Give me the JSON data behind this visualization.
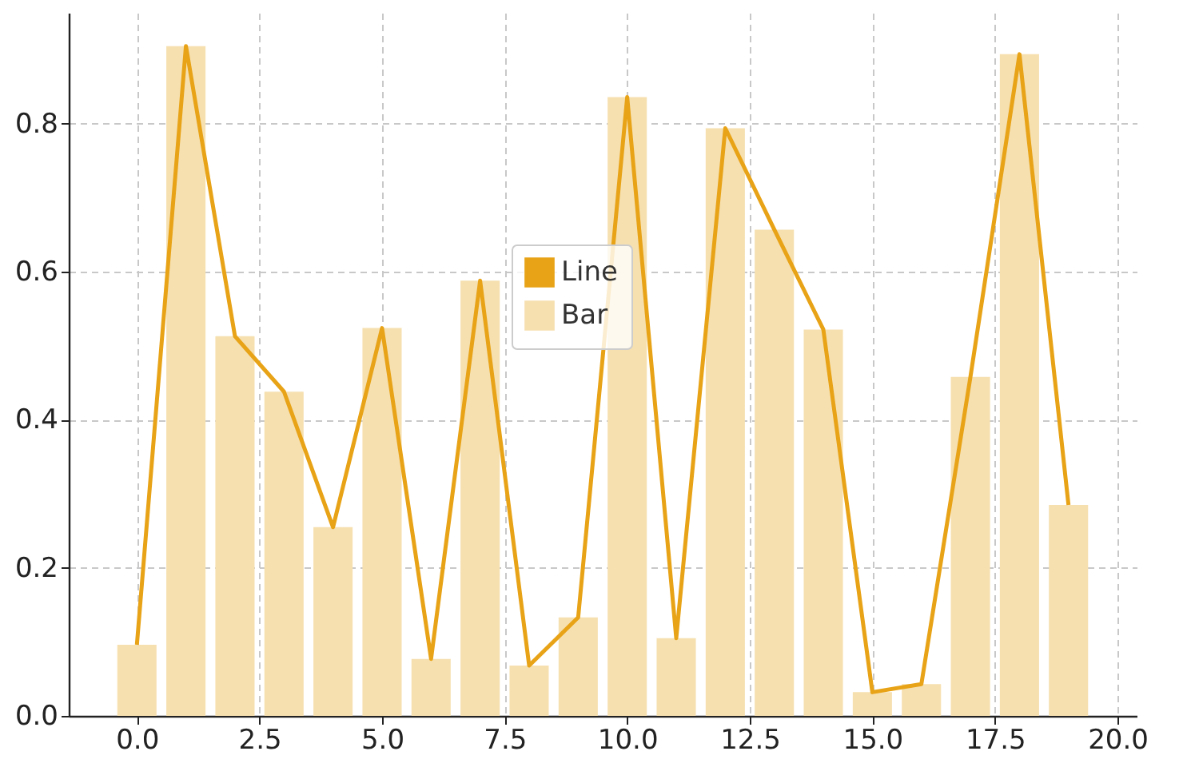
{
  "chart_data": {
    "type": "bar",
    "x": [
      0,
      1,
      2,
      3,
      4,
      5,
      6,
      7,
      8,
      9,
      10,
      11,
      12,
      13,
      14,
      15,
      16,
      17,
      18,
      19
    ],
    "series": [
      {
        "name": "Line",
        "type": "line",
        "color": "#e8a317",
        "values": [
          0.096,
          0.905,
          0.513,
          0.438,
          0.255,
          0.524,
          0.077,
          0.588,
          0.068,
          0.133,
          0.836,
          0.105,
          0.794,
          0.657,
          0.522,
          0.032,
          0.043,
          0.458,
          0.894,
          0.285
        ]
      },
      {
        "name": "Bar",
        "color": "#f6e0b0",
        "values": [
          0.096,
          0.905,
          0.513,
          0.438,
          0.255,
          0.524,
          0.077,
          0.588,
          0.068,
          0.133,
          0.836,
          0.105,
          0.794,
          0.657,
          0.522,
          0.032,
          0.043,
          0.458,
          0.894,
          0.285
        ]
      }
    ],
    "xlim": [
      -1.39,
      20.39
    ],
    "xticks": [
      {
        "value": 0,
        "label": "0.0"
      },
      {
        "value": 2.5,
        "label": "2.5"
      },
      {
        "value": 5,
        "label": "5.0"
      },
      {
        "value": 7.5,
        "label": "7.5"
      },
      {
        "value": 10,
        "label": "10.0"
      },
      {
        "value": 12.5,
        "label": "12.5"
      },
      {
        "value": 15,
        "label": "15.0"
      },
      {
        "value": 17.5,
        "label": "17.5"
      },
      {
        "value": 20,
        "label": "20.0"
      }
    ],
    "ylim": [
      0,
      0.95
    ],
    "yticks": [
      {
        "value": 0,
        "label": "0.0"
      },
      {
        "value": 0.2,
        "label": "0.2"
      },
      {
        "value": 0.4,
        "label": "0.4"
      },
      {
        "value": 0.6,
        "label": "0.6"
      },
      {
        "value": 0.8,
        "label": "0.8"
      }
    ],
    "grid": true,
    "legend": "center",
    "marker": "none",
    "line_style": "solid"
  }
}
